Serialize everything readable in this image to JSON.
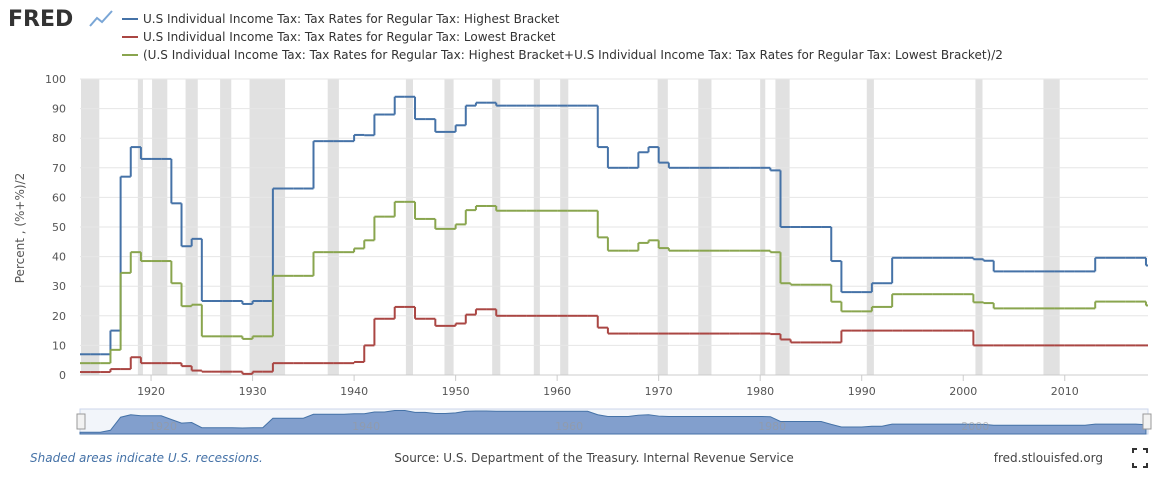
{
  "logo": "FRED",
  "chart_data": {
    "type": "line",
    "step": true,
    "y_label": "Percent , (%+%)/2",
    "x": [
      1913,
      1914,
      1915,
      1916,
      1917,
      1918,
      1919,
      1920,
      1921,
      1922,
      1923,
      1924,
      1925,
      1926,
      1927,
      1928,
      1929,
      1930,
      1931,
      1932,
      1933,
      1934,
      1935,
      1936,
      1937,
      1938,
      1939,
      1940,
      1941,
      1942,
      1943,
      1944,
      1945,
      1946,
      1947,
      1948,
      1949,
      1950,
      1951,
      1952,
      1953,
      1954,
      1955,
      1956,
      1957,
      1958,
      1959,
      1960,
      1961,
      1962,
      1963,
      1964,
      1965,
      1966,
      1967,
      1968,
      1969,
      1970,
      1971,
      1972,
      1973,
      1974,
      1975,
      1976,
      1977,
      1978,
      1979,
      1980,
      1981,
      1982,
      1983,
      1984,
      1985,
      1986,
      1987,
      1988,
      1989,
      1990,
      1991,
      1992,
      1993,
      1994,
      1995,
      1996,
      1997,
      1998,
      1999,
      2000,
      2001,
      2002,
      2003,
      2004,
      2005,
      2006,
      2007,
      2008,
      2009,
      2010,
      2011,
      2012,
      2013,
      2014,
      2015,
      2016,
      2017,
      2018
    ],
    "series": [
      {
        "name": "U.S Individual Income Tax: Tax Rates for Regular Tax: Highest Bracket",
        "color": "#4572a7",
        "values": [
          7,
          7,
          7,
          15,
          67,
          77,
          73,
          73,
          73,
          58,
          43.5,
          46,
          25,
          25,
          25,
          25,
          24,
          25,
          25,
          63,
          63,
          63,
          63,
          79,
          79,
          79,
          79,
          81.1,
          81,
          88,
          88,
          94,
          94,
          86.45,
          86.45,
          82.13,
          82.13,
          84.36,
          91,
          92,
          92,
          91,
          91,
          91,
          91,
          91,
          91,
          91,
          91,
          91,
          91,
          77,
          70,
          70,
          70,
          75.25,
          77,
          71.75,
          70,
          70,
          70,
          70,
          70,
          70,
          70,
          70,
          70,
          70,
          69.125,
          50,
          50,
          50,
          50,
          50,
          38.5,
          28,
          28,
          28,
          31,
          31,
          39.6,
          39.6,
          39.6,
          39.6,
          39.6,
          39.6,
          39.6,
          39.6,
          39.1,
          38.6,
          35,
          35,
          35,
          35,
          35,
          35,
          35,
          35,
          35,
          35,
          39.6,
          39.6,
          39.6,
          39.6,
          39.6,
          37
        ]
      },
      {
        "name": "U.S Individual Income Tax: Tax Rates for Regular Tax: Lowest Bracket",
        "color": "#aa4643",
        "values": [
          1,
          1,
          1,
          2,
          2,
          6,
          4,
          4,
          4,
          4,
          3,
          1.5,
          1.125,
          1.125,
          1.125,
          1.125,
          0.375,
          1.125,
          1.125,
          4,
          4,
          4,
          4,
          4,
          4,
          4,
          4,
          4.4,
          10,
          19,
          19,
          23,
          23,
          19,
          19,
          16.6,
          16.6,
          17.4,
          20.4,
          22.2,
          22.2,
          20,
          20,
          20,
          20,
          20,
          20,
          20,
          20,
          20,
          20,
          16,
          14,
          14,
          14,
          14,
          14,
          14,
          14,
          14,
          14,
          14,
          14,
          14,
          14,
          14,
          14,
          14,
          13.825,
          12,
          11,
          11,
          11,
          11,
          11,
          15,
          15,
          15,
          15,
          15,
          15,
          15,
          15,
          15,
          15,
          15,
          15,
          15,
          10,
          10,
          10,
          10,
          10,
          10,
          10,
          10,
          10,
          10,
          10,
          10,
          10,
          10,
          10,
          10,
          10,
          10
        ]
      },
      {
        "name": "(U.S Individual Income Tax: Tax Rates for Regular Tax: Highest Bracket+U.S Individual Income Tax: Tax Rates for Regular Tax: Lowest Bracket)/2",
        "color": "#89a54e",
        "values": [
          4,
          4,
          4,
          8.5,
          34.5,
          41.5,
          38.5,
          38.5,
          38.5,
          31,
          23.25,
          23.75,
          13.0625,
          13.0625,
          13.0625,
          13.0625,
          12.1875,
          13.0625,
          13.0625,
          33.5,
          33.5,
          33.5,
          33.5,
          41.5,
          41.5,
          41.5,
          41.5,
          42.75,
          45.5,
          53.5,
          53.5,
          58.5,
          58.5,
          52.725,
          52.725,
          49.365,
          49.365,
          50.88,
          55.7,
          57.1,
          57.1,
          55.5,
          55.5,
          55.5,
          55.5,
          55.5,
          55.5,
          55.5,
          55.5,
          55.5,
          55.5,
          46.5,
          42,
          42,
          42,
          44.625,
          45.5,
          42.875,
          42,
          42,
          42,
          42,
          42,
          42,
          42,
          42,
          42,
          42,
          41.475,
          31,
          30.5,
          30.5,
          30.5,
          30.5,
          24.75,
          21.5,
          21.5,
          21.5,
          23,
          23,
          27.3,
          27.3,
          27.3,
          27.3,
          27.3,
          27.3,
          27.3,
          27.3,
          24.55,
          24.3,
          22.5,
          22.5,
          22.5,
          22.5,
          22.5,
          22.5,
          22.5,
          22.5,
          22.5,
          22.5,
          24.8,
          24.8,
          24.8,
          24.8,
          24.8,
          23.5
        ]
      }
    ],
    "recessions": [
      [
        1913.1,
        1914.9
      ],
      [
        1918.7,
        1919.2
      ],
      [
        1920.1,
        1921.6
      ],
      [
        1923.4,
        1924.6
      ],
      [
        1926.8,
        1927.9
      ],
      [
        1929.7,
        1933.2
      ],
      [
        1937.4,
        1938.5
      ],
      [
        1945.1,
        1945.8
      ],
      [
        1948.9,
        1949.8
      ],
      [
        1953.6,
        1954.4
      ],
      [
        1957.7,
        1958.3
      ],
      [
        1960.3,
        1961.1
      ],
      [
        1969.9,
        1970.9
      ],
      [
        1973.9,
        1975.2
      ],
      [
        1980.0,
        1980.5
      ],
      [
        1981.5,
        1982.9
      ],
      [
        1990.5,
        1991.2
      ],
      [
        2001.2,
        2001.9
      ],
      [
        2007.9,
        2009.5
      ]
    ],
    "xlim": [
      1913,
      2018.2
    ],
    "xticks": [
      1920,
      1930,
      1940,
      1950,
      1960,
      1970,
      1980,
      1990,
      2000,
      2010
    ],
    "ylim": [
      0,
      100
    ],
    "yticks": [
      0,
      10,
      20,
      30,
      40,
      50,
      60,
      70,
      80,
      90,
      100
    ],
    "grid": true
  },
  "footer": {
    "note": "Shaded areas indicate U.S. recessions.",
    "source": "Source: U.S. Department of the Treasury. Internal Revenue Service",
    "site": "fred.stlouisfed.org"
  }
}
